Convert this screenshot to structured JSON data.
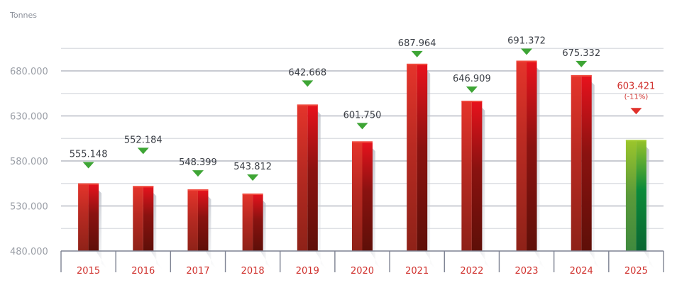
{
  "chart_data": {
    "type": "bar",
    "ylabel": "Tonnes",
    "ylim": [
      480000,
      730000
    ],
    "yticks": [
      480000,
      530000,
      580000,
      630000,
      680000
    ],
    "ytick_labels": [
      "480.000",
      "530.000",
      "580.000",
      "630.000",
      "680.000"
    ],
    "grid": true,
    "categories": [
      "2015",
      "2016",
      "2017",
      "2018",
      "2019",
      "2020",
      "2021",
      "2022",
      "2023",
      "2024",
      "2025"
    ],
    "values": [
      555148,
      552184,
      548399,
      543812,
      642668,
      601750,
      687964,
      646909,
      691372,
      675332,
      603421
    ],
    "value_labels": [
      "555.148",
      "552.184",
      "548.399",
      "543.812",
      "642.668",
      "601.750",
      "687.964",
      "646.909",
      "691.372",
      "675.332",
      "603.421"
    ],
    "annotations": {
      "2025": "(-11%)"
    },
    "colors": {
      "bar": "#c8201c",
      "highlight_bar": "#3f9a2e",
      "marker": "#3ea535",
      "highlight_marker": "#e0302a",
      "highlight_label": "#d0312d",
      "category_label": "#d0312d"
    },
    "highlight_index": 10
  }
}
